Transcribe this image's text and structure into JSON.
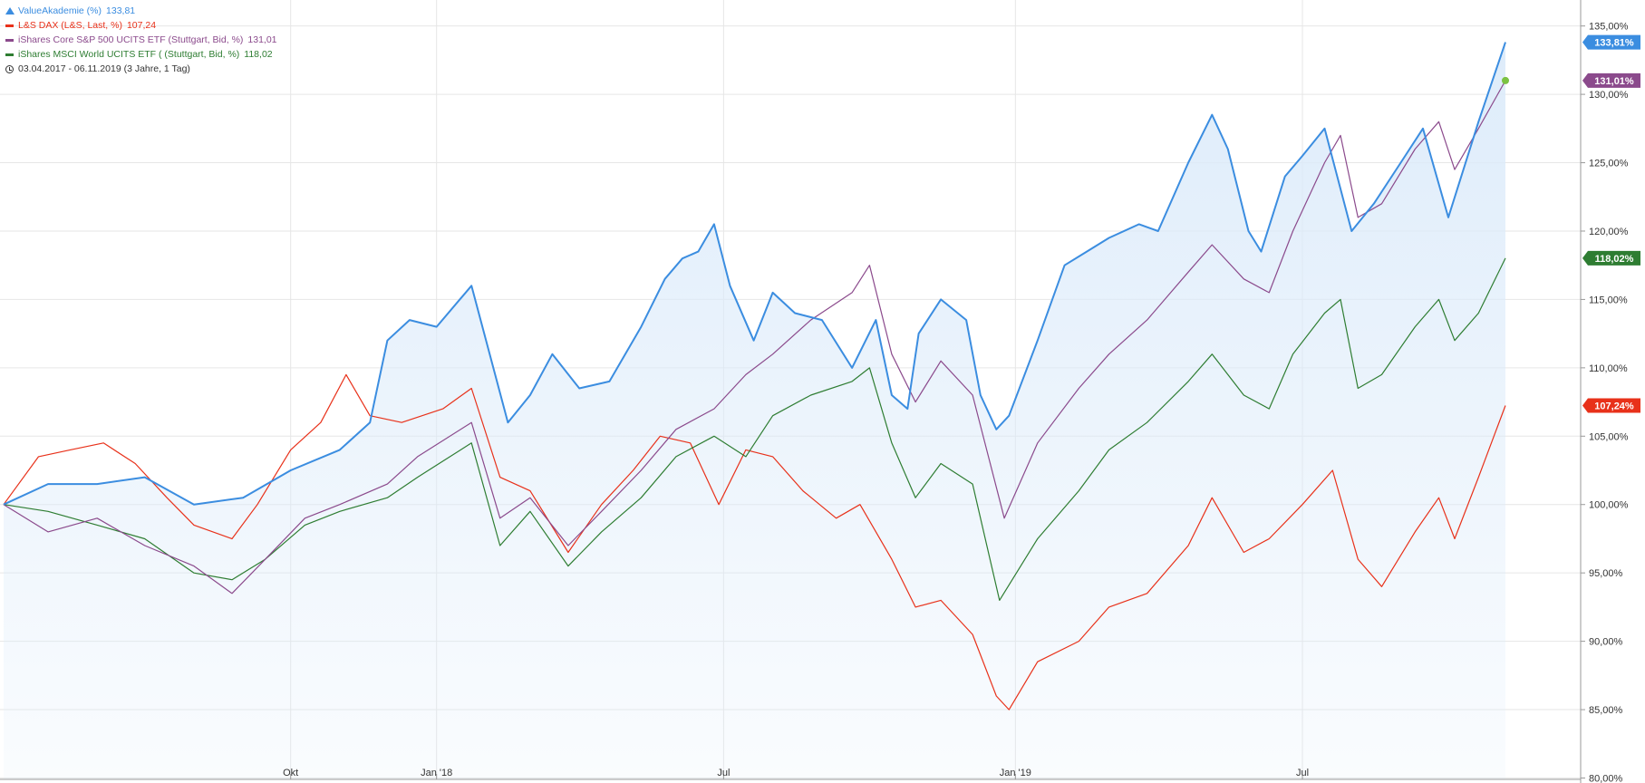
{
  "legend": {
    "items": [
      {
        "label": "ValueAkademie (%)",
        "value": "133,81",
        "color": "#3b8de0"
      },
      {
        "label": "L&S DAX (L&S, Last, %)",
        "value": "107,24",
        "color": "#e8311a"
      },
      {
        "label": "iShares Core S&P 500 UCITS ETF (Stuttgart, Bid, %)",
        "value": "131,01",
        "color": "#8b4a8c"
      },
      {
        "label": "iShares MSCI World UCITS ETF ( (Stuttgart, Bid, %)",
        "value": "118,02",
        "color": "#2e7d32"
      }
    ],
    "range": "03.04.2017 - 06.11.2019   (3 Jahre, 1 Tag)"
  },
  "colors": {
    "valueakademie": "#3b8de0",
    "dax": "#e8311a",
    "sp500": "#8b4a8c",
    "msci": "#2e7d32",
    "area_fill": "#dcebfa",
    "grid": "#e6e6e6",
    "end_dot": "#7cc242"
  },
  "chart_data": {
    "type": "line",
    "x_start": "2017-04-03",
    "x_end": "2019-11-06",
    "x_ticks": [
      {
        "label": "Okt",
        "date": "2017-10-01"
      },
      {
        "label": "Jan '18",
        "date": "2018-01-01"
      },
      {
        "label": "Jul",
        "date": "2018-07-01"
      },
      {
        "label": "Jan '19",
        "date": "2019-01-01"
      },
      {
        "label": "Jul",
        "date": "2019-07-01"
      }
    ],
    "y_ticks": [
      "80,00%",
      "85,00%",
      "90,00%",
      "95,00%",
      "100,00%",
      "105,00%",
      "110,00%",
      "115,00%",
      "120,00%",
      "125,00%",
      "130,00%",
      "135,00%"
    ],
    "ylim": [
      80,
      137
    ],
    "y_axis_position": "right",
    "grid": true,
    "legend_position": "top-left",
    "series": [
      {
        "name": "ValueAkademie (%)",
        "key": "valueakademie",
        "style": "area",
        "end_label": "133,81%",
        "points": [
          [
            "2017-04-03",
            100.0
          ],
          [
            "2017-05-01",
            101.5
          ],
          [
            "2017-06-01",
            101.5
          ],
          [
            "2017-07-01",
            102.0
          ],
          [
            "2017-08-01",
            100.0
          ],
          [
            "2017-09-01",
            100.5
          ],
          [
            "2017-10-01",
            102.5
          ],
          [
            "2017-11-01",
            104.0
          ],
          [
            "2017-11-20",
            106.0
          ],
          [
            "2017-12-01",
            112.0
          ],
          [
            "2017-12-15",
            113.5
          ],
          [
            "2018-01-01",
            113.0
          ],
          [
            "2018-01-23",
            116.0
          ],
          [
            "2018-02-15",
            106.0
          ],
          [
            "2018-03-01",
            108.0
          ],
          [
            "2018-03-15",
            111.0
          ],
          [
            "2018-04-01",
            108.5
          ],
          [
            "2018-04-20",
            109.0
          ],
          [
            "2018-05-10",
            113.0
          ],
          [
            "2018-05-25",
            116.5
          ],
          [
            "2018-06-05",
            118.0
          ],
          [
            "2018-06-15",
            118.5
          ],
          [
            "2018-06-25",
            120.5
          ],
          [
            "2018-07-05",
            116.0
          ],
          [
            "2018-07-20",
            112.0
          ],
          [
            "2018-08-01",
            115.5
          ],
          [
            "2018-08-15",
            114.0
          ],
          [
            "2018-09-01",
            113.5
          ],
          [
            "2018-09-20",
            110.0
          ],
          [
            "2018-10-05",
            113.5
          ],
          [
            "2018-10-15",
            108.0
          ],
          [
            "2018-10-25",
            107.0
          ],
          [
            "2018-11-01",
            112.5
          ],
          [
            "2018-11-15",
            115.0
          ],
          [
            "2018-12-01",
            113.5
          ],
          [
            "2018-12-10",
            108.0
          ],
          [
            "2018-12-20",
            105.5
          ],
          [
            "2018-12-28",
            106.5
          ],
          [
            "2019-01-15",
            112.0
          ],
          [
            "2019-02-01",
            117.5
          ],
          [
            "2019-02-15",
            118.5
          ],
          [
            "2019-03-01",
            119.5
          ],
          [
            "2019-03-20",
            120.5
          ],
          [
            "2019-04-01",
            120.0
          ],
          [
            "2019-04-20",
            125.0
          ],
          [
            "2019-05-05",
            128.5
          ],
          [
            "2019-05-15",
            126.0
          ],
          [
            "2019-05-28",
            120.0
          ],
          [
            "2019-06-05",
            118.5
          ],
          [
            "2019-06-20",
            124.0
          ],
          [
            "2019-07-01",
            125.5
          ],
          [
            "2019-07-15",
            127.5
          ],
          [
            "2019-08-01",
            120.0
          ],
          [
            "2019-08-15",
            122.0
          ],
          [
            "2019-09-01",
            125.0
          ],
          [
            "2019-09-15",
            127.5
          ],
          [
            "2019-10-01",
            121.0
          ],
          [
            "2019-10-20",
            128.0
          ],
          [
            "2019-11-06",
            133.81
          ]
        ]
      },
      {
        "name": "L&S DAX (L&S, Last, %)",
        "key": "dax",
        "style": "line",
        "end_label": "107,24%",
        "points": [
          [
            "2017-04-03",
            100.0
          ],
          [
            "2017-04-25",
            103.5
          ],
          [
            "2017-05-15",
            104.0
          ],
          [
            "2017-06-05",
            104.5
          ],
          [
            "2017-06-25",
            103.0
          ],
          [
            "2017-07-15",
            100.5
          ],
          [
            "2017-08-01",
            98.5
          ],
          [
            "2017-08-25",
            97.5
          ],
          [
            "2017-09-10",
            100.0
          ],
          [
            "2017-10-01",
            104.0
          ],
          [
            "2017-10-20",
            106.0
          ],
          [
            "2017-11-05",
            109.5
          ],
          [
            "2017-11-20",
            106.5
          ],
          [
            "2017-12-10",
            106.0
          ],
          [
            "2018-01-05",
            107.0
          ],
          [
            "2018-01-23",
            108.5
          ],
          [
            "2018-02-10",
            102.0
          ],
          [
            "2018-03-01",
            101.0
          ],
          [
            "2018-03-25",
            96.5
          ],
          [
            "2018-04-15",
            100.0
          ],
          [
            "2018-05-05",
            102.5
          ],
          [
            "2018-05-22",
            105.0
          ],
          [
            "2018-06-10",
            104.5
          ],
          [
            "2018-06-28",
            100.0
          ],
          [
            "2018-07-15",
            104.0
          ],
          [
            "2018-08-01",
            103.5
          ],
          [
            "2018-08-20",
            101.0
          ],
          [
            "2018-09-10",
            99.0
          ],
          [
            "2018-09-25",
            100.0
          ],
          [
            "2018-10-15",
            96.0
          ],
          [
            "2018-10-30",
            92.5
          ],
          [
            "2018-11-15",
            93.0
          ],
          [
            "2018-12-05",
            90.5
          ],
          [
            "2018-12-20",
            86.0
          ],
          [
            "2018-12-28",
            85.0
          ],
          [
            "2019-01-15",
            88.5
          ],
          [
            "2019-02-10",
            90.0
          ],
          [
            "2019-03-01",
            92.5
          ],
          [
            "2019-03-25",
            93.5
          ],
          [
            "2019-04-20",
            97.0
          ],
          [
            "2019-05-05",
            100.5
          ],
          [
            "2019-05-25",
            96.5
          ],
          [
            "2019-06-10",
            97.5
          ],
          [
            "2019-07-01",
            100.0
          ],
          [
            "2019-07-20",
            102.5
          ],
          [
            "2019-08-05",
            96.0
          ],
          [
            "2019-08-20",
            94.0
          ],
          [
            "2019-09-10",
            98.0
          ],
          [
            "2019-09-25",
            100.5
          ],
          [
            "2019-10-05",
            97.5
          ],
          [
            "2019-10-20",
            102.0
          ],
          [
            "2019-11-06",
            107.24
          ]
        ]
      },
      {
        "name": "iShares Core S&P 500 UCITS ETF (Stuttgart, Bid, %)",
        "key": "sp500",
        "style": "line",
        "end_label": "131,01%",
        "points": [
          [
            "2017-04-03",
            100.0
          ],
          [
            "2017-05-01",
            98.0
          ],
          [
            "2017-06-01",
            99.0
          ],
          [
            "2017-07-01",
            97.0
          ],
          [
            "2017-08-01",
            95.5
          ],
          [
            "2017-08-25",
            93.5
          ],
          [
            "2017-09-15",
            96.0
          ],
          [
            "2017-10-10",
            99.0
          ],
          [
            "2017-11-01",
            100.0
          ],
          [
            "2017-12-01",
            101.5
          ],
          [
            "2017-12-20",
            103.5
          ],
          [
            "2018-01-23",
            106.0
          ],
          [
            "2018-02-10",
            99.0
          ],
          [
            "2018-03-01",
            100.5
          ],
          [
            "2018-03-25",
            97.0
          ],
          [
            "2018-04-15",
            99.5
          ],
          [
            "2018-05-10",
            102.5
          ],
          [
            "2018-06-01",
            105.5
          ],
          [
            "2018-06-25",
            107.0
          ],
          [
            "2018-07-15",
            109.5
          ],
          [
            "2018-08-01",
            111.0
          ],
          [
            "2018-08-25",
            113.5
          ],
          [
            "2018-09-20",
            115.5
          ],
          [
            "2018-10-01",
            117.5
          ],
          [
            "2018-10-15",
            111.0
          ],
          [
            "2018-10-30",
            107.5
          ],
          [
            "2018-11-15",
            110.5
          ],
          [
            "2018-12-05",
            108.0
          ],
          [
            "2018-12-25",
            99.0
          ],
          [
            "2019-01-15",
            104.5
          ],
          [
            "2019-02-10",
            108.5
          ],
          [
            "2019-03-01",
            111.0
          ],
          [
            "2019-03-25",
            113.5
          ],
          [
            "2019-04-20",
            117.0
          ],
          [
            "2019-05-05",
            119.0
          ],
          [
            "2019-05-25",
            116.5
          ],
          [
            "2019-06-10",
            115.5
          ],
          [
            "2019-06-25",
            120.0
          ],
          [
            "2019-07-15",
            125.0
          ],
          [
            "2019-07-25",
            127.0
          ],
          [
            "2019-08-05",
            121.0
          ],
          [
            "2019-08-20",
            122.0
          ],
          [
            "2019-09-10",
            126.0
          ],
          [
            "2019-09-25",
            128.0
          ],
          [
            "2019-10-05",
            124.5
          ],
          [
            "2019-10-20",
            127.5
          ],
          [
            "2019-11-06",
            131.01
          ]
        ]
      },
      {
        "name": "iShares MSCI World UCITS ETF ( (Stuttgart, Bid, %)",
        "key": "msci",
        "style": "line",
        "end_label": "118,02%",
        "points": [
          [
            "2017-04-03",
            100.0
          ],
          [
            "2017-05-01",
            99.5
          ],
          [
            "2017-06-01",
            98.5
          ],
          [
            "2017-07-01",
            97.5
          ],
          [
            "2017-08-01",
            95.0
          ],
          [
            "2017-08-25",
            94.5
          ],
          [
            "2017-09-15",
            96.0
          ],
          [
            "2017-10-10",
            98.5
          ],
          [
            "2017-11-01",
            99.5
          ],
          [
            "2017-12-01",
            100.5
          ],
          [
            "2017-12-20",
            102.0
          ],
          [
            "2018-01-23",
            104.5
          ],
          [
            "2018-02-10",
            97.0
          ],
          [
            "2018-03-01",
            99.5
          ],
          [
            "2018-03-25",
            95.5
          ],
          [
            "2018-04-15",
            98.0
          ],
          [
            "2018-05-10",
            100.5
          ],
          [
            "2018-06-01",
            103.5
          ],
          [
            "2018-06-25",
            105.0
          ],
          [
            "2018-07-15",
            103.5
          ],
          [
            "2018-08-01",
            106.5
          ],
          [
            "2018-08-25",
            108.0
          ],
          [
            "2018-09-20",
            109.0
          ],
          [
            "2018-10-01",
            110.0
          ],
          [
            "2018-10-15",
            104.5
          ],
          [
            "2018-10-30",
            100.5
          ],
          [
            "2018-11-15",
            103.0
          ],
          [
            "2018-12-05",
            101.5
          ],
          [
            "2018-12-22",
            93.0
          ],
          [
            "2019-01-15",
            97.5
          ],
          [
            "2019-02-10",
            101.0
          ],
          [
            "2019-03-01",
            104.0
          ],
          [
            "2019-03-25",
            106.0
          ],
          [
            "2019-04-20",
            109.0
          ],
          [
            "2019-05-05",
            111.0
          ],
          [
            "2019-05-25",
            108.0
          ],
          [
            "2019-06-10",
            107.0
          ],
          [
            "2019-06-25",
            111.0
          ],
          [
            "2019-07-15",
            114.0
          ],
          [
            "2019-07-25",
            115.0
          ],
          [
            "2019-08-05",
            108.5
          ],
          [
            "2019-08-20",
            109.5
          ],
          [
            "2019-09-10",
            113.0
          ],
          [
            "2019-09-25",
            115.0
          ],
          [
            "2019-10-05",
            112.0
          ],
          [
            "2019-10-20",
            114.0
          ],
          [
            "2019-11-06",
            118.02
          ]
        ]
      }
    ]
  }
}
